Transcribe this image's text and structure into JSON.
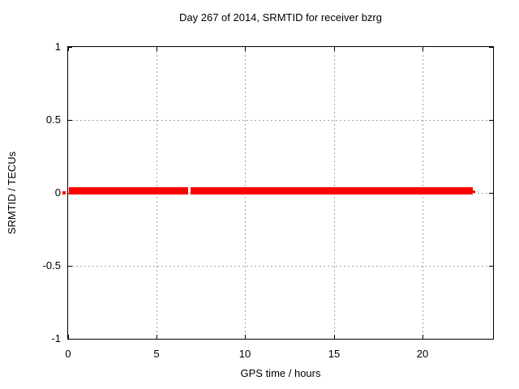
{
  "chart_data": {
    "type": "scatter",
    "title": "Day 267 of 2014, SRMTID for receiver bzrg",
    "xlabel": "GPS time / hours",
    "ylabel": "SRMTID / TECUs",
    "xlim": [
      0,
      24
    ],
    "ylim": [
      -1,
      1
    ],
    "xticks": [
      {
        "value": 0,
        "label": "0"
      },
      {
        "value": 5,
        "label": "5"
      },
      {
        "value": 10,
        "label": "10"
      },
      {
        "value": 15,
        "label": "15"
      },
      {
        "value": 20,
        "label": "20"
      }
    ],
    "yticks": [
      {
        "value": -1,
        "label": "-1"
      },
      {
        "value": -0.5,
        "label": "-0.5"
      },
      {
        "value": 0,
        "label": "0"
      },
      {
        "value": 0.5,
        "label": "0.5"
      },
      {
        "value": 1,
        "label": "1"
      }
    ],
    "grid": true,
    "legend": "none",
    "colors": {
      "series": "#ff0000",
      "grid": "#a0a0a0",
      "border": "#000000",
      "background": "#ffffff",
      "text": "#000000"
    },
    "series": [
      {
        "name": "SRMTID",
        "color": "#ff0000",
        "y_value": 0,
        "segments_hours": [
          {
            "from": 0.05,
            "to": 6.78
          },
          {
            "from": 6.92,
            "to": 22.86
          },
          {
            "from": 22.86,
            "to": 23.0,
            "thin": true
          }
        ]
      }
    ]
  }
}
